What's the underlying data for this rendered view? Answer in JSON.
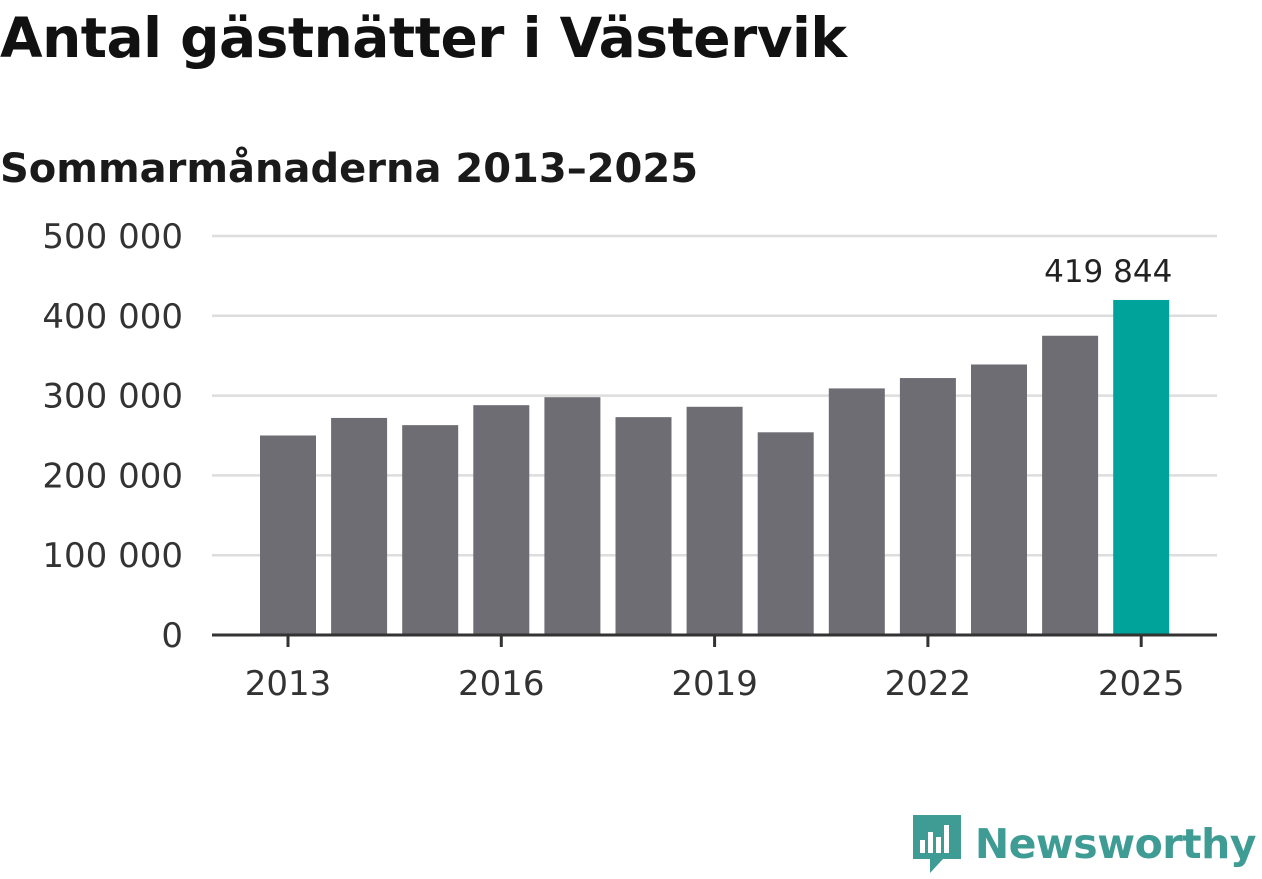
{
  "title": "Antal gästnätter i Västervik",
  "subtitle": "Sommarmånaderna 2013–2025",
  "brand": {
    "name": "Newsworthy",
    "color": "#3f9c94"
  },
  "colors": {
    "bar": "#6e6d73",
    "highlight": "#00a39a",
    "grid": "#dddddd",
    "axis": "#333333"
  },
  "chart_data": {
    "type": "bar",
    "title": "Antal gästnätter i Västervik",
    "subtitle": "Sommarmånaderna 2013–2025",
    "categories": [
      "2013",
      "2014",
      "2015",
      "2016",
      "2017",
      "2018",
      "2019",
      "2020",
      "2021",
      "2022",
      "2023",
      "2024",
      "2025"
    ],
    "values": [
      250000,
      272000,
      263000,
      288000,
      298000,
      273000,
      286000,
      254000,
      309000,
      322000,
      339000,
      375000,
      419844
    ],
    "ylim": [
      0,
      500000
    ],
    "yticks": [
      0,
      100000,
      200000,
      300000,
      400000,
      500000
    ],
    "ytick_labels": [
      "0",
      "100 000",
      "200 000",
      "300 000",
      "400 000",
      "500 000"
    ],
    "xticks_shown": [
      "2013",
      "2016",
      "2019",
      "2022",
      "2025"
    ],
    "highlight_index": 12,
    "highlight_label": "419 844",
    "grid": true,
    "xlabel": "",
    "ylabel": ""
  }
}
